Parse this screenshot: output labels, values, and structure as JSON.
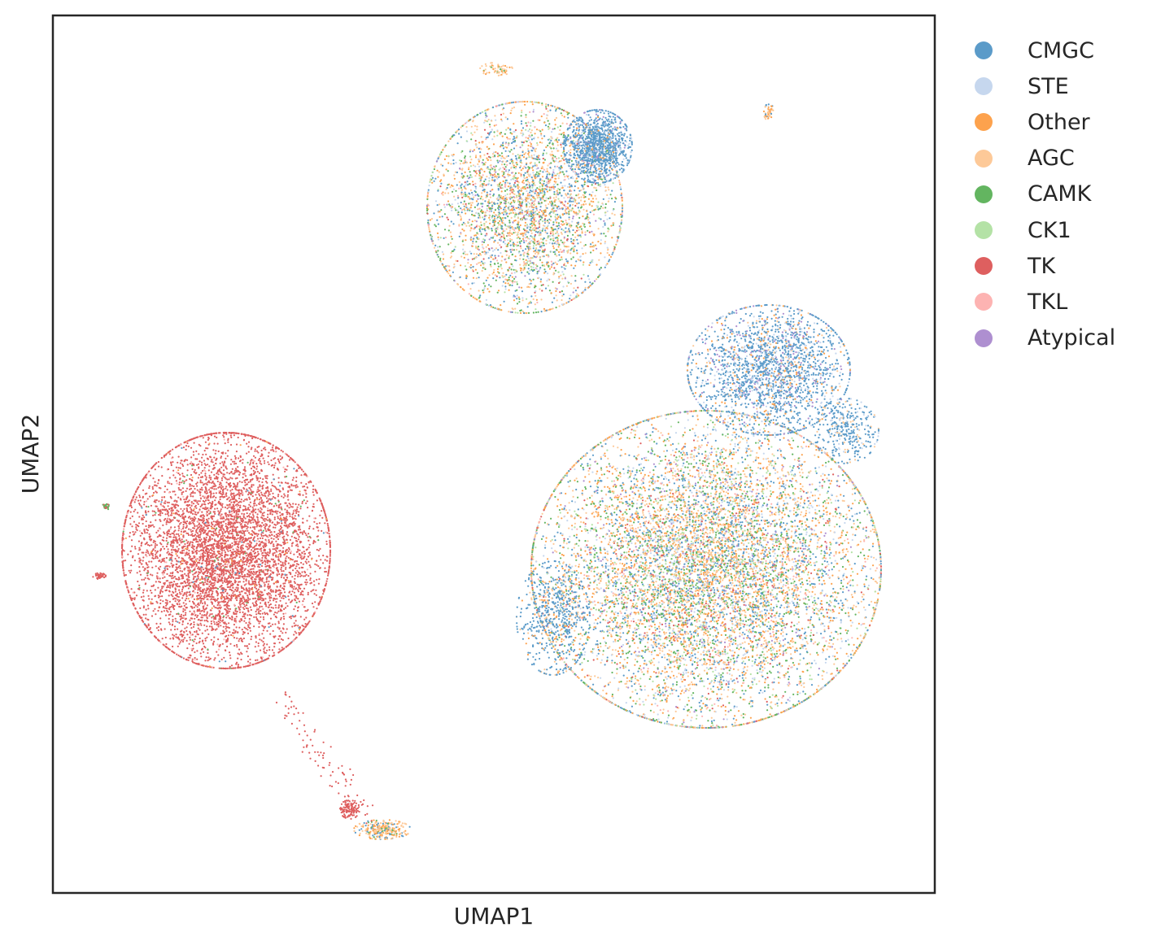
{
  "chart_data": {
    "type": "scatter",
    "title": "",
    "xlabel": "UMAP1",
    "ylabel": "UMAP2",
    "xticks": [],
    "yticks": [],
    "grid": false,
    "legend_position": "outside-right-top",
    "series": [
      {
        "name": "CMGC",
        "color": "#5b9bc9"
      },
      {
        "name": "STE",
        "color": "#c6d7ee"
      },
      {
        "name": "Other",
        "color": "#fda24d"
      },
      {
        "name": "AGC",
        "color": "#fdc998"
      },
      {
        "name": "CAMK",
        "color": "#63b560"
      },
      {
        "name": "CK1",
        "color": "#b4e2a6"
      },
      {
        "name": "TK",
        "color": "#de5f5f"
      },
      {
        "name": "TKL",
        "color": "#fdb3b2"
      },
      {
        "name": "Atypical",
        "color": "#ae8fd0"
      }
    ]
  }
}
